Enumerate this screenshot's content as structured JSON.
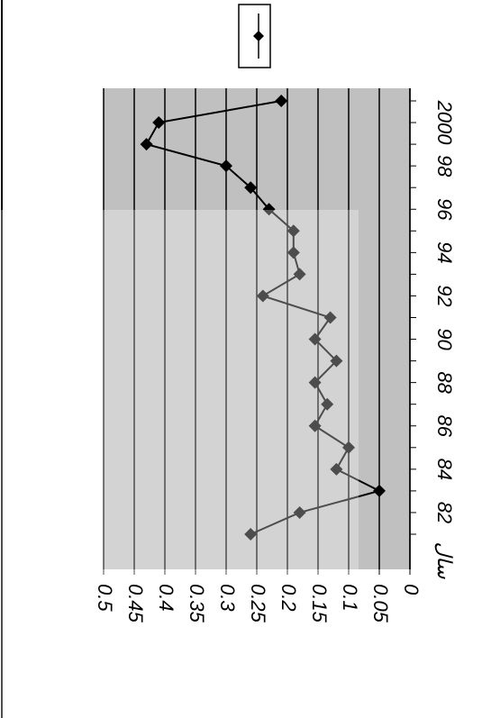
{
  "chart_data": {
    "type": "line",
    "x_label": "سال",
    "categories": [
      null,
      "82",
      null,
      "84",
      null,
      "86",
      null,
      "88",
      null,
      "90",
      null,
      "92",
      null,
      "94",
      null,
      "96",
      null,
      "98",
      null,
      "2000",
      null
    ],
    "series": [
      {
        "name": null,
        "color": "#000000",
        "values": [
          0.26,
          0.18,
          0.05,
          0.12,
          0.1,
          0.155,
          0.135,
          0.155,
          0.12,
          0.155,
          0.13,
          0.24,
          0.18,
          0.19,
          0.19,
          0.23,
          0.26,
          0.3,
          0.43,
          0.41,
          0.21
        ]
      }
    ],
    "ylim": [
      0,
      0.5
    ],
    "yticks": [
      0,
      0.05,
      0.1,
      0.15,
      0.2,
      0.25,
      0.3,
      0.35,
      0.4,
      0.45,
      0.5
    ],
    "grid": true,
    "legend": "top"
  }
}
